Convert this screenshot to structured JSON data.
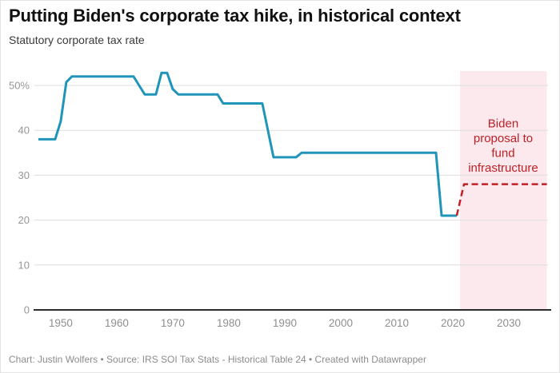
{
  "header": {
    "title": "Putting Biden's corporate tax hike, in historical context",
    "subtitle": "Statutory corporate tax rate"
  },
  "footer": {
    "text": "Chart: Justin Wolfers • Source: IRS SOI Tax Stats - Historical Table 24 • Created with Datawrapper"
  },
  "chart_data": {
    "type": "line",
    "title": "Putting Biden's corporate tax hike, in historical context",
    "ylabel": "Statutory corporate tax rate",
    "xlabel": "",
    "x_range": [
      1945.3,
      2037
    ],
    "y_range": [
      0,
      53.2
    ],
    "x_ticks": [
      1950,
      1960,
      1970,
      1980,
      1990,
      2000,
      2010,
      2020,
      2030
    ],
    "y_ticks": [
      {
        "v": 0,
        "label": "0"
      },
      {
        "v": 10,
        "label": "10"
      },
      {
        "v": 20,
        "label": "20"
      },
      {
        "v": 30,
        "label": "30"
      },
      {
        "v": 40,
        "label": "40"
      },
      {
        "v": 50,
        "label": "50%"
      }
    ],
    "grid": "horizontal",
    "legend": "none",
    "series": [
      {
        "name": "Statutory corporate tax rate (historical)",
        "color": "#2095b9",
        "style": "solid",
        "points": [
          [
            1946,
            38
          ],
          [
            1949,
            38
          ],
          [
            1950,
            42
          ],
          [
            1951,
            50.75
          ],
          [
            1952,
            52
          ],
          [
            1963,
            52
          ],
          [
            1964,
            50
          ],
          [
            1965,
            48
          ],
          [
            1967,
            48
          ],
          [
            1968,
            52.8
          ],
          [
            1969,
            52.8
          ],
          [
            1970,
            49.2
          ],
          [
            1971,
            48
          ],
          [
            1978,
            48
          ],
          [
            1979,
            46
          ],
          [
            1986,
            46
          ],
          [
            1987,
            40
          ],
          [
            1988,
            34
          ],
          [
            1992,
            34
          ],
          [
            1993,
            35
          ],
          [
            2017,
            35
          ],
          [
            2018,
            21
          ],
          [
            2020.7,
            21
          ]
        ]
      },
      {
        "name": "Biden proposal",
        "color": "#bf2026",
        "style": "dashed",
        "points": [
          [
            2020.7,
            21
          ],
          [
            2022,
            28
          ],
          [
            2036.8,
            28
          ]
        ]
      }
    ],
    "highlight_region": {
      "x_start": 2021.3,
      "x_end": 2036.8,
      "color": "#fce9ed"
    },
    "annotation": {
      "lines": [
        "Biden",
        "proposal to",
        "fund",
        "infrastructure"
      ],
      "color": "#bf2026",
      "x": 2029,
      "y_top_value": 40.7,
      "line_height_px": 18.5
    },
    "axis_color": "#2b2b2b",
    "gridline_color": "#dedede"
  }
}
